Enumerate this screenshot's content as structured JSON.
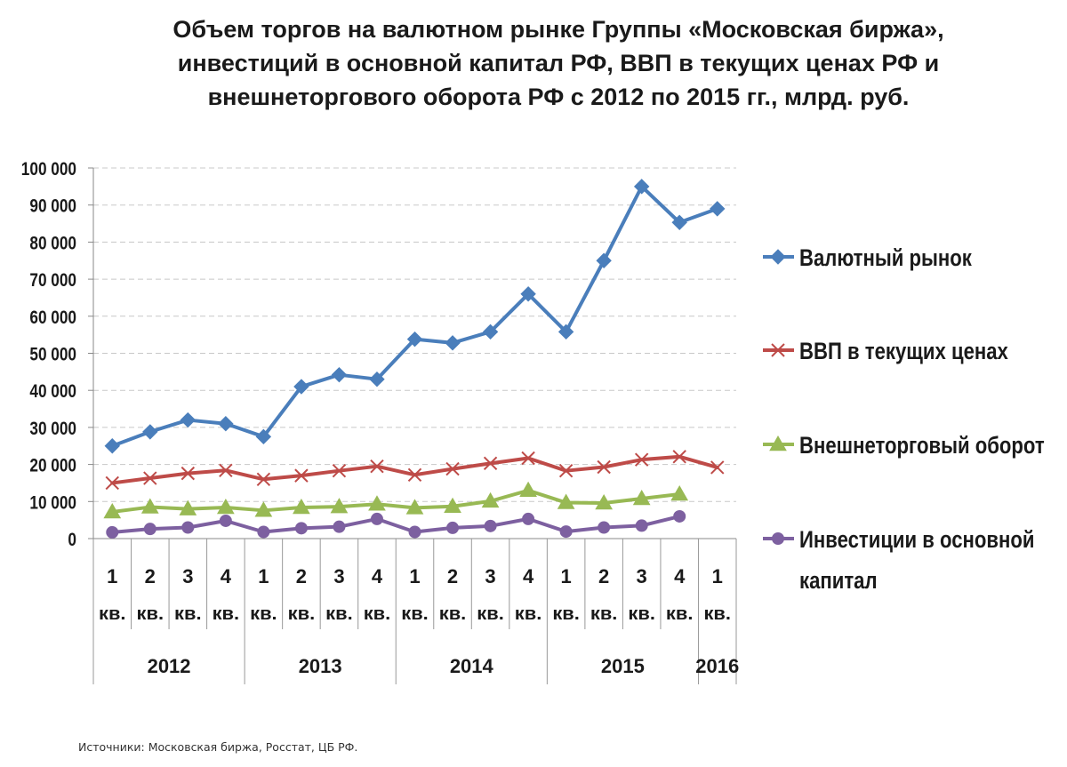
{
  "title_lines": [
    "Объем торгов на валютном рынке Группы «Московская биржа»,",
    "инвестиций в основной капитал РФ, ВВП в текущих ценах РФ и",
    "внешнеторгового оборота РФ с 2012 по 2015 гг., млрд. руб."
  ],
  "source": "Источники: Московская биржа, Росстат, ЦБ РФ.",
  "chart_data": {
    "type": "line",
    "title": "Объем торгов на валютном рынке Группы «Московская биржа», инвестиций в основной капитал РФ, ВВП в текущих ценах РФ и внешнеторгового оборота РФ с 2012 по 2015 гг., млрд. руб.",
    "ylim": [
      0,
      100000
    ],
    "y_ticks": [
      0,
      10000,
      20000,
      30000,
      40000,
      50000,
      60000,
      70000,
      80000,
      90000,
      100000
    ],
    "y_tick_labels": [
      "0",
      "10 000",
      "20 000",
      "30 000",
      "40 000",
      "50 000",
      "60 000",
      "70 000",
      "80 000",
      "90 000",
      "100 000"
    ],
    "grid": true,
    "legend_position": "right",
    "categories": [
      {
        "num": "1",
        "unit": "кв."
      },
      {
        "num": "2",
        "unit": "кв."
      },
      {
        "num": "3",
        "unit": "кв."
      },
      {
        "num": "4",
        "unit": "кв."
      },
      {
        "num": "1",
        "unit": "кв."
      },
      {
        "num": "2",
        "unit": "кв."
      },
      {
        "num": "3",
        "unit": "кв."
      },
      {
        "num": "4",
        "unit": "кв."
      },
      {
        "num": "1",
        "unit": "кв."
      },
      {
        "num": "2",
        "unit": "кв."
      },
      {
        "num": "3",
        "unit": "кв."
      },
      {
        "num": "4",
        "unit": "кв."
      },
      {
        "num": "1",
        "unit": "кв."
      },
      {
        "num": "2",
        "unit": "кв."
      },
      {
        "num": "3",
        "unit": "кв."
      },
      {
        "num": "4",
        "unit": "кв."
      },
      {
        "num": "1",
        "unit": "кв."
      }
    ],
    "years": [
      {
        "label": "2012",
        "count": 4
      },
      {
        "label": "2013",
        "count": 4
      },
      {
        "label": "2014",
        "count": 4
      },
      {
        "label": "2015",
        "count": 4
      },
      {
        "label": "2016",
        "count": 1
      }
    ],
    "series": [
      {
        "name": "Валютный рынок",
        "color": "#4a7ebb",
        "marker": "diamond",
        "values": [
          25000,
          28800,
          32000,
          31000,
          27500,
          41000,
          44200,
          43000,
          53800,
          52800,
          55800,
          66000,
          55800,
          75000,
          95000,
          85300,
          89000
        ]
      },
      {
        "name": "ВВП в текущих ценах",
        "color": "#be4b48",
        "marker": "x",
        "values": [
          15000,
          16300,
          17600,
          18400,
          16000,
          17000,
          18300,
          19500,
          17200,
          18800,
          20300,
          21700,
          18300,
          19300,
          21300,
          22100,
          19200
        ]
      },
      {
        "name": "Внешнеторговый оборот",
        "color": "#98b954",
        "marker": "triangle",
        "values": [
          7200,
          8500,
          8000,
          8400,
          7600,
          8400,
          8600,
          9300,
          8300,
          8700,
          10100,
          13000,
          9700,
          9600,
          10800,
          12000,
          null
        ]
      },
      {
        "name": "Инвестиции в основной\nкапитал",
        "color": "#7d60a0",
        "marker": "circle",
        "values": [
          1700,
          2600,
          3000,
          4800,
          1800,
          2800,
          3200,
          5300,
          1800,
          2900,
          3400,
          5300,
          1900,
          3000,
          3500,
          6000,
          null
        ]
      }
    ]
  }
}
